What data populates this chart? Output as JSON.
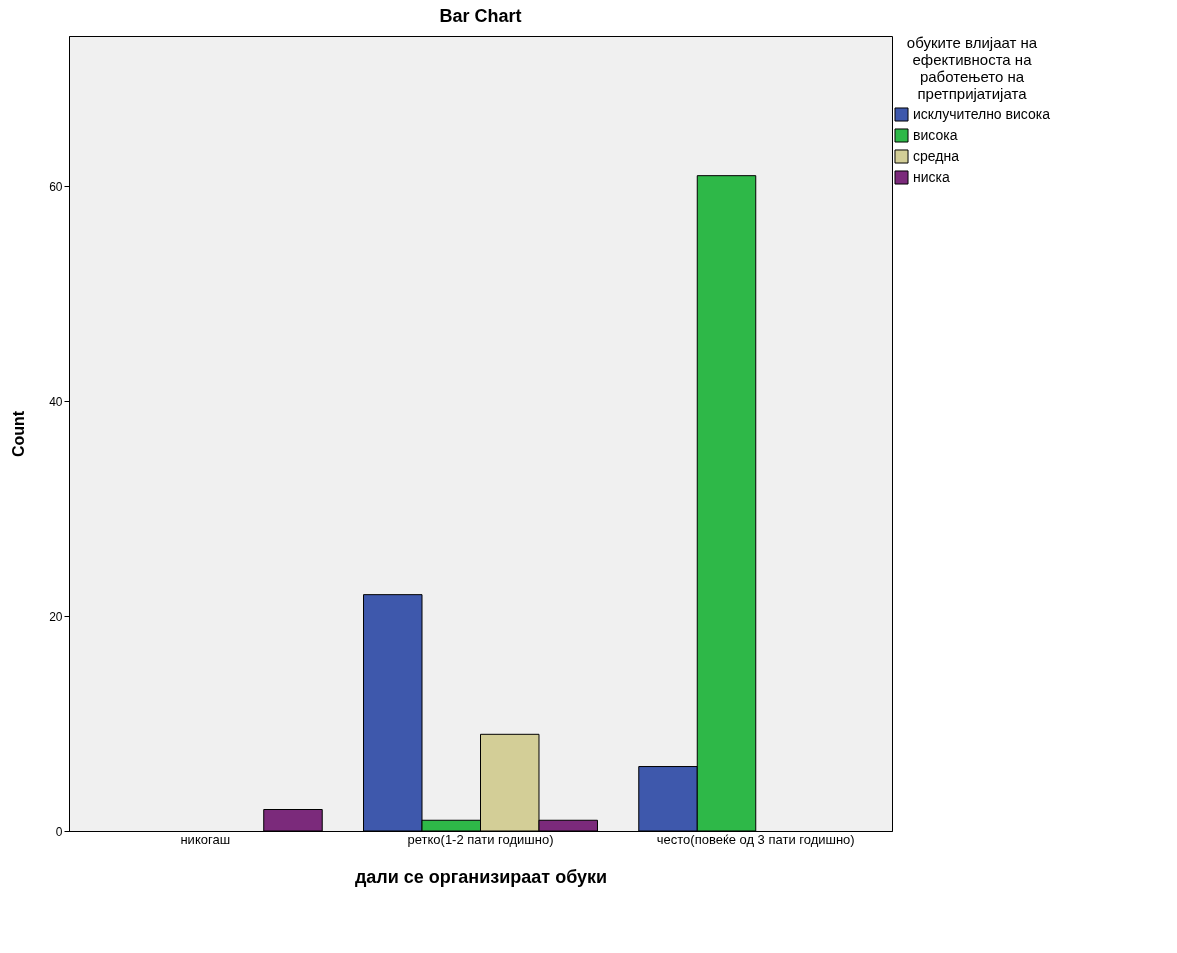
{
  "chart_data": {
    "type": "bar",
    "title": "Bar Chart",
    "xlabel": "дали се организираат обуки",
    "ylabel": "Count",
    "legend_title": "обуките влијаат на ефективноста на работењето на претпријатијата",
    "categories": [
      "никогаш",
      "ретко(1-2 пати годишно)",
      "често(повеќе од 3 пати годишно)"
    ],
    "series": [
      {
        "name": "исклучително висока",
        "color": "#3e58ac",
        "values": [
          null,
          22,
          6
        ]
      },
      {
        "name": "висока",
        "color": "#2eb848",
        "values": [
          null,
          1,
          61
        ]
      },
      {
        "name": "средна",
        "color": "#d3ce97",
        "values": [
          null,
          9,
          null
        ]
      },
      {
        "name": "ниска",
        "color": "#7b2a7b",
        "values": [
          2,
          1,
          null
        ]
      }
    ],
    "ylim": [
      0,
      74
    ],
    "yticks": [
      0,
      20,
      40,
      60
    ],
    "grid": false,
    "legend": "top right"
  }
}
